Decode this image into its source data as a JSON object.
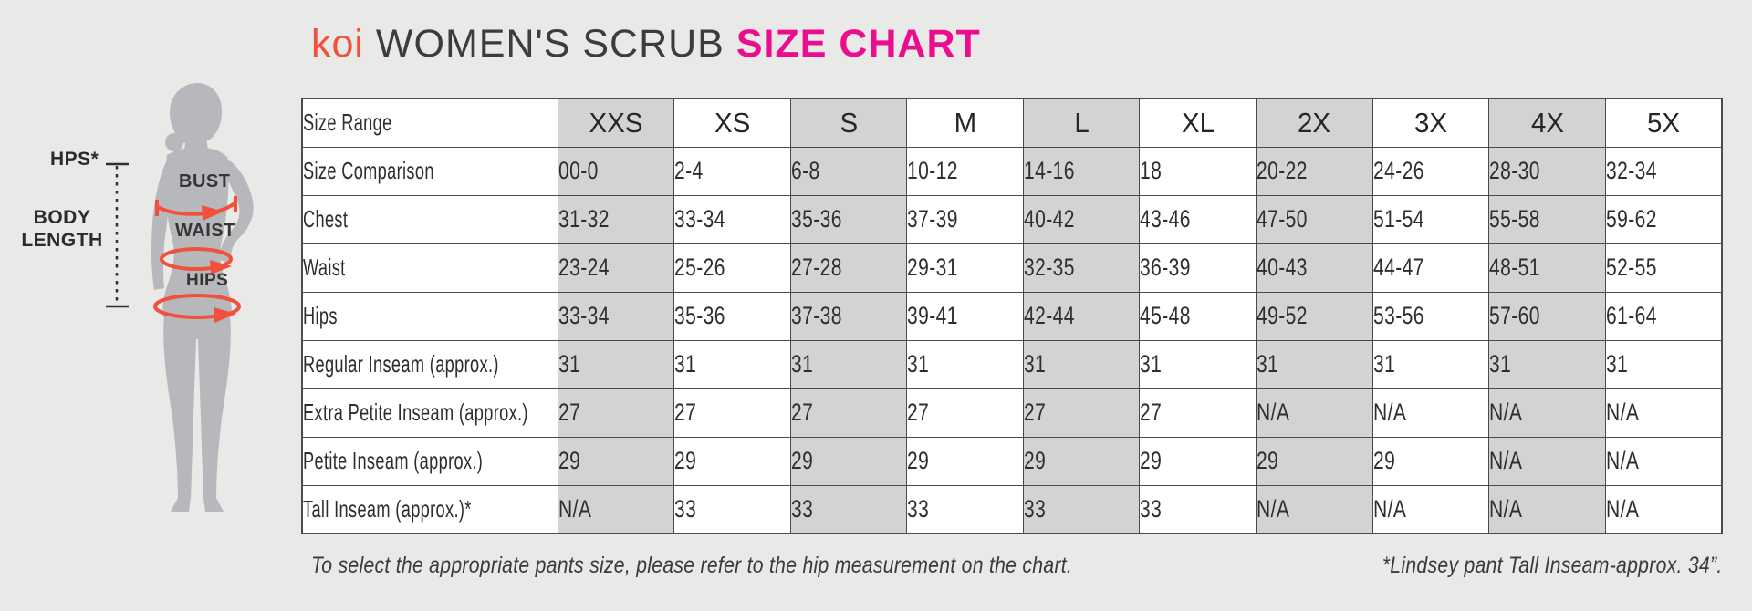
{
  "page": {
    "background_color": "#e9e9e8"
  },
  "title": {
    "brand": "koi",
    "middle": " WOMEN'S SCRUB ",
    "highlight": "SIZE CHART",
    "brand_color": "#f1503d",
    "highlight_color": "#ec0d8e",
    "text_color": "#3c3c3b"
  },
  "figure": {
    "silhouette_color": "#b7b8bb",
    "arrow_color": "#f1503d",
    "labels": {
      "hps": "HPS*",
      "body_length": "BODY LENGTH",
      "bust": "BUST",
      "waist": "WAIST",
      "hips": "HIPS"
    }
  },
  "table": {
    "corner_label": "Size Range",
    "columns": [
      "XXS",
      "XS",
      "S",
      "M",
      "L",
      "XL",
      "2X",
      "3X",
      "4X",
      "5X"
    ],
    "shaded_column_indices": [
      0,
      2,
      4,
      6,
      8
    ],
    "shade_color": "#d3d3d1",
    "border_color": "#4b4b49",
    "rows": [
      {
        "label": "Size Comparison",
        "values": [
          "00-0",
          "2-4",
          "6-8",
          "10-12",
          "14-16",
          "18",
          "20-22",
          "24-26",
          "28-30",
          "32-34"
        ]
      },
      {
        "label": "Chest",
        "values": [
          "31-32",
          "33-34",
          "35-36",
          "37-39",
          "40-42",
          "43-46",
          "47-50",
          "51-54",
          "55-58",
          "59-62"
        ]
      },
      {
        "label": "Waist",
        "values": [
          "23-24",
          "25-26",
          "27-28",
          "29-31",
          "32-35",
          "36-39",
          "40-43",
          "44-47",
          "48-51",
          "52-55"
        ]
      },
      {
        "label": "Hips",
        "values": [
          "33-34",
          "35-36",
          "37-38",
          "39-41",
          "42-44",
          "45-48",
          "49-52",
          "53-56",
          "57-60",
          "61-64"
        ]
      },
      {
        "label": "Regular Inseam (approx.)",
        "values": [
          "31",
          "31",
          "31",
          "31",
          "31",
          "31",
          "31",
          "31",
          "31",
          "31"
        ]
      },
      {
        "label": "Extra Petite Inseam (approx.)",
        "values": [
          "27",
          "27",
          "27",
          "27",
          "27",
          "27",
          "N/A",
          "N/A",
          "N/A",
          "N/A"
        ]
      },
      {
        "label": "Petite Inseam (approx.)",
        "values": [
          "29",
          "29",
          "29",
          "29",
          "29",
          "29",
          "29",
          "29",
          "N/A",
          "N/A"
        ]
      },
      {
        "label": "Tall Inseam (approx.)*",
        "values": [
          "N/A",
          "33",
          "33",
          "33",
          "33",
          "33",
          "N/A",
          "N/A",
          "N/A",
          "N/A"
        ]
      }
    ]
  },
  "footnotes": {
    "left": "To select the appropriate pants size, please refer to the hip measurement on the chart.",
    "right": "*Lindsey pant Tall Inseam-approx. 34”."
  }
}
